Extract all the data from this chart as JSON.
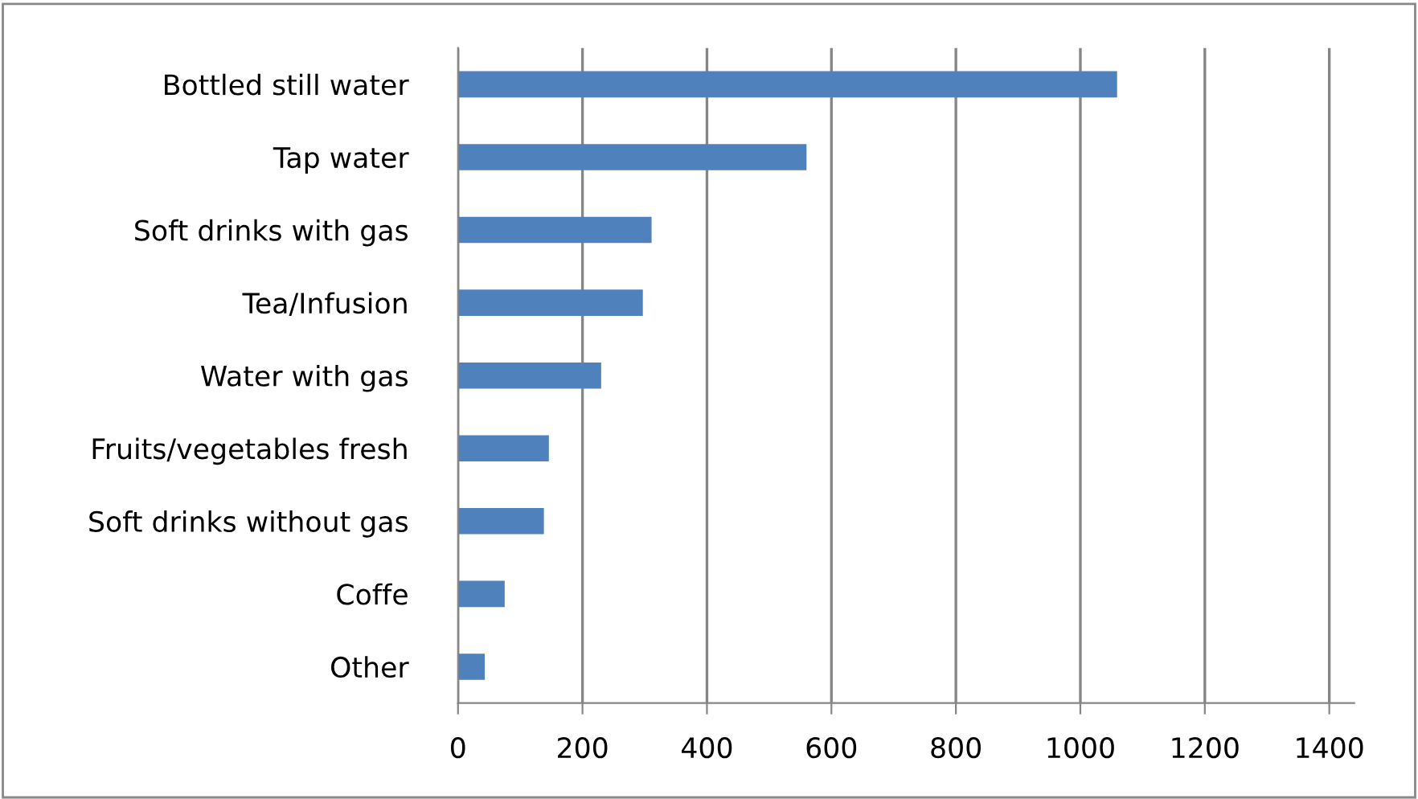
{
  "chart_data": {
    "type": "bar",
    "orientation": "horizontal",
    "categories": [
      "Bottled still water",
      "Tap water",
      "Soft drinks with gas",
      "Tea/Infusion",
      "Water with gas",
      "Fruits/vegetables fresh",
      "Soft drinks without gas",
      "Coffe",
      "Other"
    ],
    "values": [
      1059,
      560,
      311,
      297,
      230,
      146,
      138,
      75,
      43
    ],
    "color": "#4f81bd",
    "xlim": [
      0,
      1440
    ],
    "xticks": [
      0,
      200,
      400,
      600,
      800,
      1000,
      1200,
      1400
    ],
    "grid": "x",
    "legend": false
  }
}
